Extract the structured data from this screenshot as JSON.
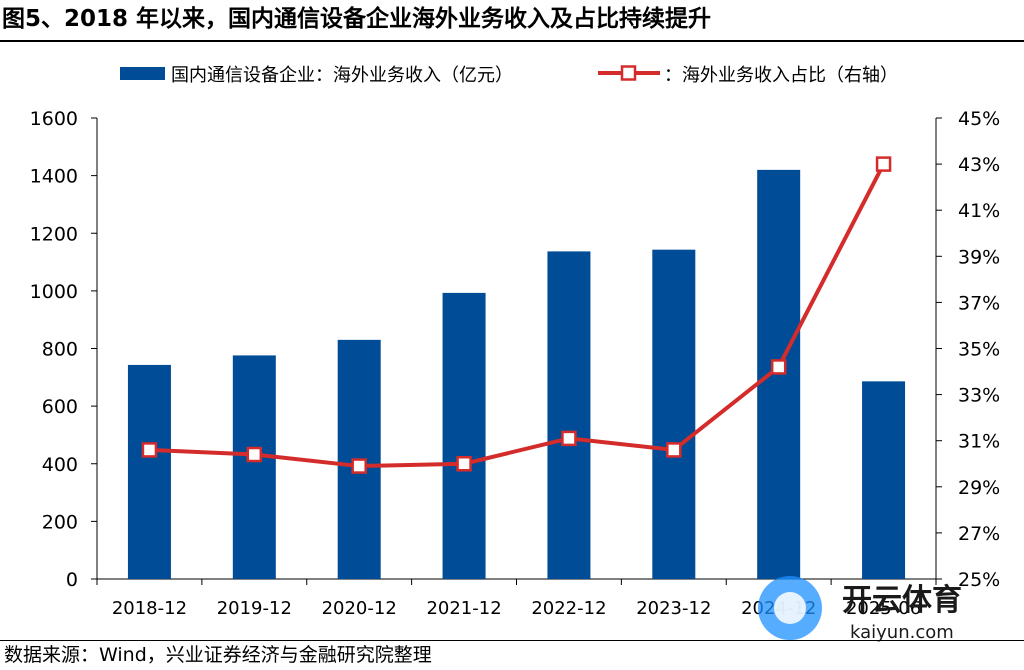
{
  "title": "图5、2018 年以来，国内通信设备企业海外业务收入及占比持续提升",
  "source": "数据来源：Wind，兴业证券经济与金融研究院整理",
  "watermark": {
    "name": "开云体育",
    "url": "kaiyun.com"
  },
  "colors": {
    "bar": "#004C97",
    "line": "#D42B2B"
  },
  "chart_data": {
    "type": "bar",
    "categories": [
      "2018-12",
      "2019-12",
      "2020-12",
      "2021-12",
      "2022-12",
      "2023-12",
      "2024-12",
      "2025-06"
    ],
    "series": [
      {
        "name": "国内通信设备企业：海外业务收入（亿元）",
        "type": "bar",
        "axis": "left",
        "values": [
          743,
          776,
          830,
          993,
          1137,
          1143,
          1420,
          686
        ]
      },
      {
        "name": "：海外业务收入占比（右轴）",
        "type": "line",
        "axis": "right",
        "values": [
          30.6,
          30.4,
          29.9,
          30.0,
          31.1,
          30.6,
          34.2,
          43.0
        ],
        "unit": "%"
      }
    ],
    "y_left": {
      "min": 0,
      "max": 1600,
      "step": 200,
      "ticks": [
        "0",
        "200",
        "400",
        "600",
        "800",
        "1000",
        "1200",
        "1400",
        "1600"
      ]
    },
    "y_right": {
      "min": 25,
      "max": 45,
      "step": 2,
      "ticks": [
        "25%",
        "27%",
        "29%",
        "31%",
        "33%",
        "35%",
        "37%",
        "39%",
        "41%",
        "43%",
        "45%"
      ]
    },
    "legend": "top",
    "grid": false
  }
}
